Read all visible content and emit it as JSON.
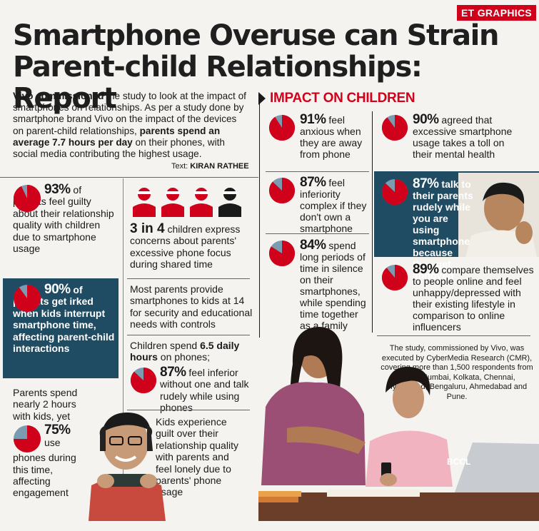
{
  "badge": "ET GRAPHICS",
  "headline": "Smartphone Overuse can Strain Parent-child Relationships: Report",
  "intro": {
    "lead": "Vivo commissioned",
    "text1": " the study to look at the impact of smartphones on relationships. As per a study done by smartphone brand Vivo on the impact of the devices on parent-child relationships, ",
    "bold2": "parents spend an average ",
    "bold3": "7.7 hours per day",
    "text4": " on their phones, with social media contributing the highest usage."
  },
  "credit": {
    "label": "Text: ",
    "author": "KIRAN RATHEE"
  },
  "left_stats": {
    "s93": {
      "pct": "93%",
      "suffix": " of",
      "text": "parents feel guilty about their relationship quality with children due to smartphone usage",
      "value": 93
    },
    "s90": {
      "pct": "90%",
      "suffix": " of",
      "text": "parents get irked when kids interrupt smartphone time, affecting parent-child interactions",
      "value": 90
    },
    "s75": {
      "intro": "Parents spend nearly 2 hours with kids, yet",
      "pct": "75%",
      "text1": "use",
      "text2": "phones during this time, affecting engagement",
      "value": 75
    }
  },
  "mid_stats": {
    "three_in_four": {
      "big": "3 in 4",
      "text": " children express concerns about parents' excessive phone focus during shared time"
    },
    "provide": "Most parents provide smartphones to kids at 14 for security and educational needs with controls",
    "daily": {
      "text1": "Children spend ",
      "bold": "6.5 daily hours",
      "text2": " on phones;"
    },
    "s87": {
      "pct": "87%",
      "text": " feel inferior without one and talk rudely while using phones",
      "value": 87
    },
    "guilt": "Kids experience guilt over their relationship quality with parents and feel lonely due to parents' phone usage"
  },
  "impact": {
    "title": "IMPACT ON CHILDREN",
    "s91": {
      "pct": "91%",
      "text": " feel anxious when they are away from phone",
      "value": 91
    },
    "s87": {
      "pct": "87%",
      "text": " feel inferiority complex if they don't own a smartphone",
      "value": 87
    },
    "s84": {
      "pct": "84%",
      "text": " spend long periods of time in silence on their smartphones, while spending time together as a family",
      "value": 84
    },
    "s90": {
      "pct": "90%",
      "text": " agreed that excessive smartphone usage takes a toll on their mental health",
      "value": 90
    },
    "s87b": {
      "pct": "87%",
      "text": " talk to their parents rudely while you are using smartphone because they get annoyed",
      "value": 87
    },
    "s89": {
      "pct": "89%",
      "text": " compare themselves to people online and feel unhappy/depressed with their existing lifestyle in comparison to online influencers",
      "value": 89
    }
  },
  "study_note": "The study, commissioned by Vivo, was executed by CyberMedia Research (CMR), covering more than 1,500 respondents from Delhi, Mumbai, Kolkata, Chennai, Hyderabad, Bengaluru, Ahmedabad and Pune.",
  "photo_credit": "BCCL",
  "colors": {
    "accent": "#d0021b",
    "blue_box": "#1f4b63",
    "pie_remainder": "#7a9bb0"
  }
}
